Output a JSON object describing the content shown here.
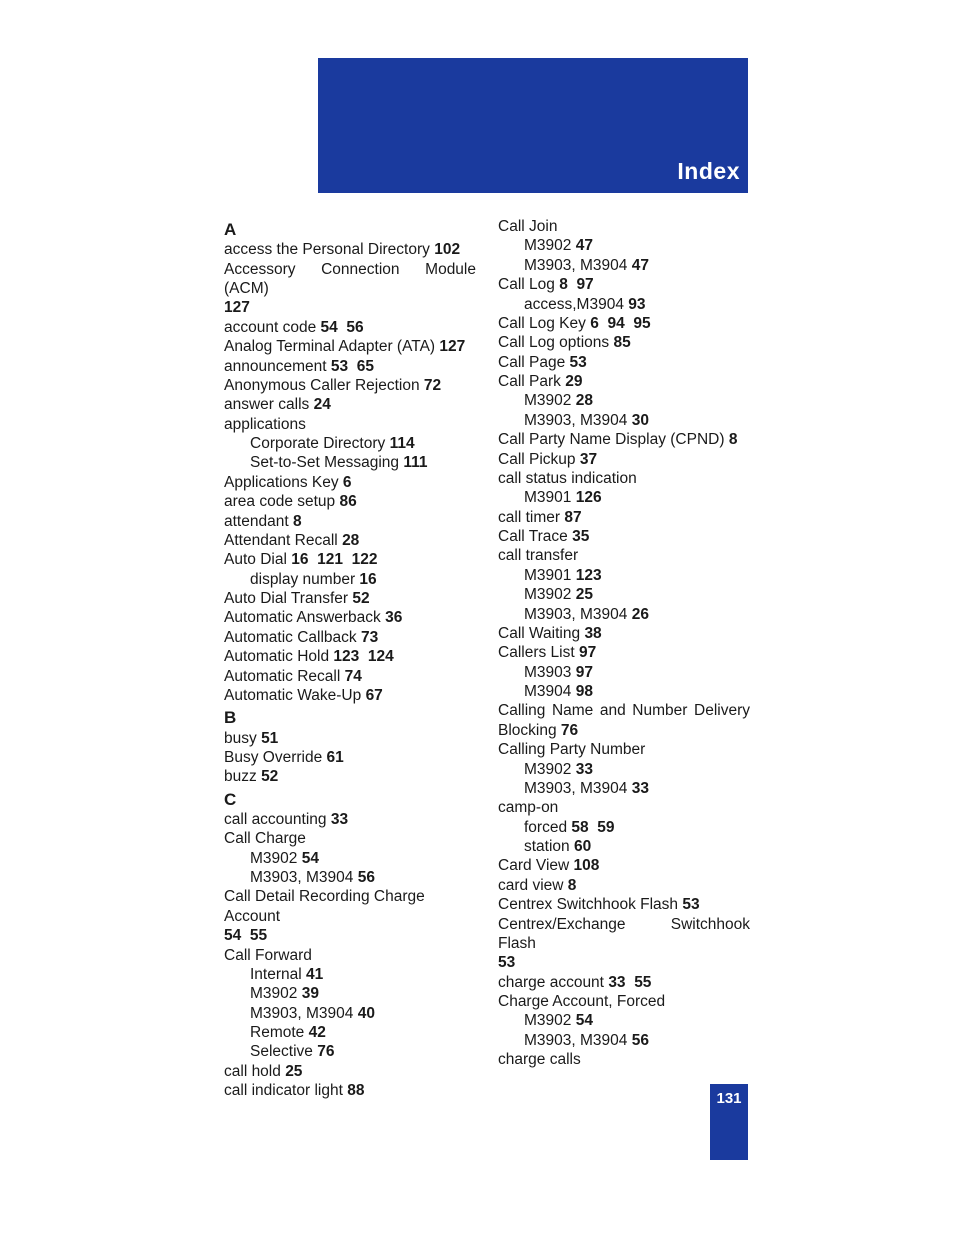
{
  "header": {
    "title": "Index"
  },
  "pageNumber": "131",
  "colors": {
    "brand_blue": "#1a3a9e",
    "text": "#1a1a1a",
    "white": "#ffffff"
  },
  "left": {
    "A": "A",
    "a1_t": "access the Personal Directory",
    "a1_p": "102",
    "a2_t": "Accessory Connection Module (ACM)",
    "a2_p": "127",
    "a3_t": "account code",
    "a3_p1": "54",
    "a3_p2": "56",
    "a4_t": "Analog Terminal Adapter (ATA)",
    "a4_p": "127",
    "a5_t": "announcement",
    "a5_p1": "53",
    "a5_p2": "65",
    "a6_t": "Anonymous Caller Rejection",
    "a6_p": "72",
    "a7_t": "answer calls",
    "a7_p": "24",
    "a8_t": "applications",
    "a8s1_t": "Corporate Directory",
    "a8s1_p": "114",
    "a8s2_t": "Set-to-Set Messaging",
    "a8s2_p": "111",
    "a9_t": "Applications Key",
    "a9_p": "6",
    "a10_t": "area code setup",
    "a10_p": "86",
    "a11_t": "attendant",
    "a11_p": "8",
    "a12_t": "Attendant Recall",
    "a12_p": "28",
    "a13_t": "Auto Dial",
    "a13_p1": "16",
    "a13_p2": "121",
    "a13_p3": "122",
    "a13s1_t": "display number",
    "a13s1_p": "16",
    "a14_t": "Auto Dial Transfer",
    "a14_p": "52",
    "a15_t": "Automatic Answerback",
    "a15_p": "36",
    "a16_t": "Automatic Callback",
    "a16_p": "73",
    "a17_t": "Automatic Hold",
    "a17_p1": "123",
    "a17_p2": "124",
    "a18_t": "Automatic Recall",
    "a18_p": "74",
    "a19_t": "Automatic Wake-Up",
    "a19_p": "67",
    "B": "B",
    "b1_t": "busy",
    "b1_p": "51",
    "b2_t": "Busy Override",
    "b2_p": "61",
    "b3_t": "buzz",
    "b3_p": "52",
    "C": "C",
    "c1_t": "call accounting",
    "c1_p": "33",
    "c2_t": "Call Charge",
    "c2s1_t": "M3902",
    "c2s1_p": "54",
    "c2s2_t": "M3903, M3904",
    "c2s2_p": "56",
    "c3_t": "Call Detail Recording Charge Account",
    "c3_p1": "54",
    "c3_p2": "55",
    "c4_t": "Call Forward",
    "c4s1_t": "Internal",
    "c4s1_p": "41",
    "c4s2_t": "M3902",
    "c4s2_p": "39",
    "c4s3_t": "M3903, M3904",
    "c4s3_p": "40",
    "c4s4_t": "Remote",
    "c4s4_p": "42",
    "c4s5_t": "Selective",
    "c4s5_p": "76",
    "c5_t": "call hold",
    "c5_p": "25",
    "c6_t": "call indicator light",
    "c6_p": "88"
  },
  "right": {
    "r1_t": "Call Join",
    "r1s1_t": "M3902",
    "r1s1_p": "47",
    "r1s2_t": "M3903, M3904",
    "r1s2_p": "47",
    "r2_t": "Call Log",
    "r2_p1": "8",
    "r2_p2": "97",
    "r2s1_t": "access,M3904",
    "r2s1_p": "93",
    "r3_t": "Call Log Key",
    "r3_p1": "6",
    "r3_p2": "94",
    "r3_p3": "95",
    "r4_t": "Call Log options",
    "r4_p": "85",
    "r5_t": "Call Page",
    "r5_p": "53",
    "r6_t": "Call Park",
    "r6_p": "29",
    "r6s1_t": "M3902",
    "r6s1_p": "28",
    "r6s2_t": "M3903, M3904",
    "r6s2_p": "30",
    "r7_t": "Call Party Name Display (CPND)",
    "r7_p": "8",
    "r8_t": "Call Pickup",
    "r8_p": "37",
    "r9_t": "call status indication",
    "r9s1_t": "M3901",
    "r9s1_p": "126",
    "r10_t": "call timer",
    "r10_p": "87",
    "r11_t": "Call Trace",
    "r11_p": "35",
    "r12_t": "call transfer",
    "r12s1_t": "M3901",
    "r12s1_p": "123",
    "r12s2_t": "M3902",
    "r12s2_p": "25",
    "r12s3_t": "M3903, M3904",
    "r12s3_p": "26",
    "r13_t": "Call Waiting",
    "r13_p": "38",
    "r14_t": "Callers List",
    "r14_p": "97",
    "r14s1_t": "M3903",
    "r14s1_p": "97",
    "r14s2_t": "M3904",
    "r14s2_p": "98",
    "r15_t": "Calling Name and Number Delivery Blocking",
    "r15_p": "76",
    "r16_t": "Calling Party Number",
    "r16s1_t": "M3902",
    "r16s1_p": "33",
    "r16s2_t": "M3903, M3904",
    "r16s2_p": "33",
    "r17_t": "camp-on",
    "r17s1_t": "forced",
    "r17s1_p1": "58",
    "r17s1_p2": "59",
    "r17s2_t": "station",
    "r17s2_p": "60",
    "r18_t": "Card View",
    "r18_p": "108",
    "r19_t": "card view",
    "r19_p": "8",
    "r20_t": "Centrex Switchhook Flash",
    "r20_p": "53",
    "r21_t": "Centrex/Exchange Switchhook Flash",
    "r21_p": "53",
    "r22_t": "charge account",
    "r22_p1": "33",
    "r22_p2": "55",
    "r23_t": "Charge Account, Forced",
    "r23s1_t": "M3902",
    "r23s1_p": "54",
    "r23s2_t": "M3903, M3904",
    "r23s2_p": "56",
    "r24_t": "charge calls"
  }
}
